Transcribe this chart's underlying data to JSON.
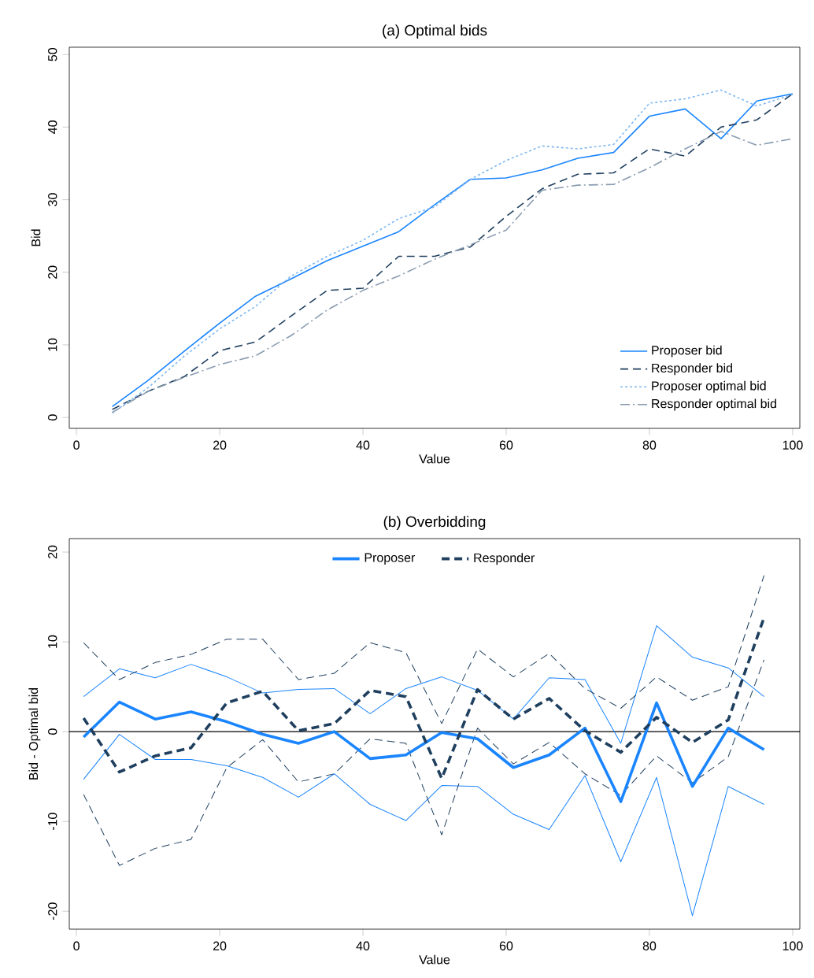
{
  "chart_data": [
    {
      "type": "line",
      "title": "(a) Optimal bids",
      "xlabel": "Value",
      "ylabel": "Bid",
      "x": [
        5,
        10,
        15,
        20,
        25,
        30,
        35,
        40,
        45,
        50,
        55,
        60,
        65,
        70,
        75,
        80,
        85,
        90,
        95,
        100
      ],
      "xlim": [
        -1,
        101
      ],
      "ylim": [
        -1.5,
        51
      ],
      "xticks": [
        0,
        20,
        40,
        60,
        80,
        100
      ],
      "yticks": [
        0,
        10,
        20,
        30,
        40,
        50
      ],
      "legend": "bottom right",
      "grid": false,
      "marker": "none",
      "series": [
        {
          "name": "Proposer bid",
          "color": "#1a85ff",
          "line_style": "solid",
          "values": [
            1.5,
            5.1,
            9.1,
            13.0,
            16.7,
            19.1,
            21.6,
            23.6,
            25.6,
            29.3,
            32.8,
            33.0,
            34.1,
            35.7,
            36.5,
            41.5,
            42.5,
            38.4,
            43.6,
            44.6
          ]
        },
        {
          "name": "Responder bid",
          "color": "#1f3f5f",
          "line_style": "dashed",
          "values": [
            1.1,
            3.6,
            5.6,
            9.2,
            10.4,
            14.0,
            17.5,
            17.8,
            22.2,
            22.2,
            23.5,
            27.7,
            31.5,
            33.5,
            33.7,
            37.0,
            36.0,
            40.0,
            41.0,
            44.6
          ]
        },
        {
          "name": "Proposer optimal bid",
          "color": "#7fb8f0",
          "line_style": "dotted",
          "values": [
            0.6,
            4.1,
            8.4,
            12.2,
            15.3,
            19.5,
            22.2,
            24.4,
            27.4,
            29.0,
            32.8,
            35.4,
            37.4,
            37.0,
            37.6,
            43.3,
            43.9,
            45.1,
            42.9,
            44.5
          ]
        },
        {
          "name": "Responder optimal bid",
          "color": "#8a9cb0",
          "line_style": "dashdot",
          "values": [
            0.7,
            3.6,
            5.5,
            7.3,
            8.5,
            11.3,
            14.8,
            17.5,
            19.5,
            21.8,
            23.8,
            25.8,
            31.3,
            32.0,
            32.1,
            34.4,
            37.0,
            39.4,
            37.5,
            38.4
          ]
        }
      ]
    },
    {
      "type": "line",
      "title": "(b) Overbidding",
      "xlabel": "Value",
      "ylabel": "Bid - Optimal bid",
      "x": [
        1,
        6,
        11,
        16,
        21,
        26,
        31,
        36,
        41,
        46,
        51,
        56,
        61,
        66,
        71,
        76,
        81,
        86,
        91,
        96
      ],
      "xlim": [
        -1,
        101
      ],
      "ylim": [
        -22,
        21.5
      ],
      "xticks": [
        0,
        20,
        40,
        60,
        80,
        100
      ],
      "yticks": [
        -20,
        -10,
        0,
        10,
        20
      ],
      "legend": "top",
      "grid": false,
      "marker": "none",
      "ref_lines": [
        {
          "axis": "y",
          "value": 0,
          "color": "#000000"
        }
      ],
      "series": [
        {
          "color": "#1a85ff",
          "line_style": "solid",
          "values": [
            3.9,
            7.0,
            6.0,
            7.5,
            6.1,
            4.3,
            4.7,
            4.8,
            2.0,
            4.8,
            6.1,
            4.6,
            1.4,
            6.0,
            5.8,
            -1.3,
            11.8,
            8.3,
            7.1,
            3.9
          ]
        },
        {
          "color": "#1a85ff",
          "line_style": "solid",
          "values": [
            -5.3,
            -0.3,
            -3.1,
            -3.1,
            -3.8,
            -5.1,
            -7.3,
            -4.7,
            -8.1,
            -9.9,
            -6.0,
            -6.1,
            -9.2,
            -10.9,
            -4.9,
            -14.5,
            -5.1,
            -20.5,
            -6.1,
            -8.1
          ]
        },
        {
          "color": "#1f3f5f",
          "line_style": "dashed",
          "values": [
            9.9,
            5.8,
            7.7,
            8.6,
            10.3,
            10.3,
            5.8,
            6.5,
            9.9,
            8.8,
            0.9,
            9.2,
            6.1,
            8.7,
            4.8,
            2.6,
            6.1,
            3.5,
            5.0,
            17.4
          ]
        },
        {
          "color": "#1f3f5f",
          "line_style": "dashed",
          "values": [
            -7.0,
            -14.9,
            -13.0,
            -12.0,
            -4.0,
            -0.9,
            -5.6,
            -4.7,
            -0.8,
            -1.3,
            -11.5,
            0.4,
            -3.6,
            -1.2,
            -4.7,
            -7.1,
            -2.7,
            -5.7,
            -2.8,
            8.0
          ]
        },
        {
          "name": "Proposer",
          "color": "#1a85ff",
          "line_style": "solid",
          "values": [
            -0.6,
            3.3,
            1.4,
            2.2,
            1.1,
            -0.3,
            -1.3,
            0,
            -3.0,
            -2.6,
            -0.1,
            -0.8,
            -4.0,
            -2.6,
            0.4,
            -7.8,
            3.2,
            -6.1,
            0.4,
            -2.0
          ]
        },
        {
          "name": "Responder",
          "color": "#1f3f5f",
          "line_style": "dashed",
          "values": [
            1.5,
            -4.5,
            -2.7,
            -1.8,
            3.2,
            4.5,
            0.1,
            0.9,
            4.6,
            3.9,
            -5.2,
            4.7,
            1.4,
            3.7,
            0.1,
            -2.3,
            1.6,
            -1.2,
            1.3,
            12.7
          ]
        }
      ]
    }
  ]
}
